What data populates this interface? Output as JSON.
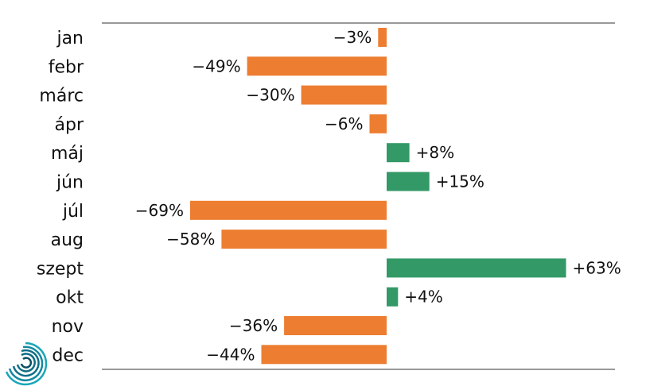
{
  "chart_data": {
    "type": "bar",
    "orientation": "horizontal",
    "categories": [
      "jan",
      "febr",
      "márc",
      "ápr",
      "máj",
      "jún",
      "júl",
      "aug",
      "szept",
      "okt",
      "nov",
      "dec"
    ],
    "values": [
      -3,
      -49,
      -30,
      -6,
      8,
      15,
      -69,
      -58,
      63,
      4,
      -36,
      -44
    ],
    "value_labels": [
      "−3%",
      "−49%",
      "−30%",
      "−6%",
      "+8%",
      "+15%",
      "−69%",
      "−58%",
      "+63%",
      "+4%",
      "−36%",
      "−44%"
    ],
    "xlim": [
      -100,
      80
    ],
    "grid": false,
    "title": "",
    "xlabel": "",
    "ylabel": "",
    "colors": {
      "negative": "#ed7d31",
      "positive": "#339966",
      "text": "#111111",
      "rule": "#333333"
    }
  },
  "logo": {
    "icon": "spiral-logo-icon",
    "colors": [
      "#1aa6b7",
      "#0f6e86"
    ]
  }
}
